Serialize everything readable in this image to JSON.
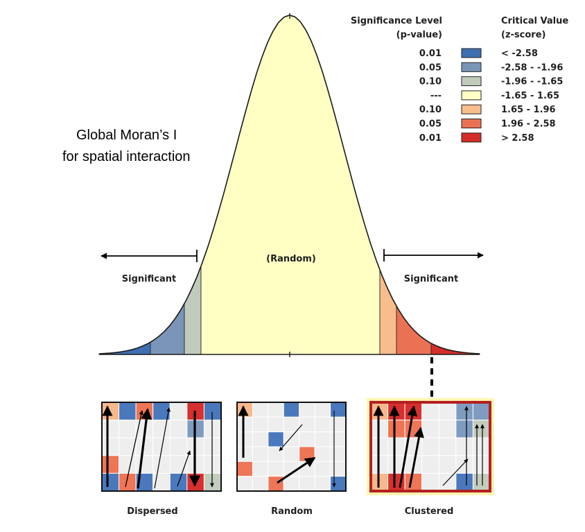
{
  "title": {
    "line1": "Global Moran’s I",
    "line2": "for spatial interaction"
  },
  "curve": {
    "center_label": "(Random)",
    "left_label": "Significant",
    "right_label": "Significant",
    "band_colors": {
      "z_lt_-2.58": "#3e6fb0",
      "z_-2.58_-1.96": "#7b95b8",
      "z_-1.96_-1.65": "#c0cbbd",
      "z_-1.65_1.65": "#ffffc4",
      "z_1.65_1.96": "#f7bd8c",
      "z_1.96_2.58": "#eb7154",
      "z_gt_2.58": "#d42e2a"
    }
  },
  "legend": {
    "header_left_1": "Significance Level",
    "header_left_2": "(p-value)",
    "header_right_1": "Critical Value",
    "header_right_2": "(z-score)",
    "rows": [
      {
        "p": "0.01",
        "z": "< -2.58",
        "color": "#3e6fb0"
      },
      {
        "p": "0.05",
        "z": "-2.58 - -1.96",
        "color": "#7b95b8"
      },
      {
        "p": "0.10",
        "z": "-1.96 - -1.65",
        "color": "#c0cbbd"
      },
      {
        "p": "---",
        "z": "-1.65 - 1.65",
        "color": "#ffffc4"
      },
      {
        "p": "0.10",
        "z": "1.65 - 1.96",
        "color": "#f7bd8c"
      },
      {
        "p": "0.05",
        "z": "1.96 - 2.58",
        "color": "#eb7154"
      },
      {
        "p": "0.01",
        "z": "> 2.58",
        "color": "#d42e2a"
      }
    ]
  },
  "patterns": [
    {
      "label": "Dispersed"
    },
    {
      "label": "Random"
    },
    {
      "label": "Clustered"
    }
  ]
}
